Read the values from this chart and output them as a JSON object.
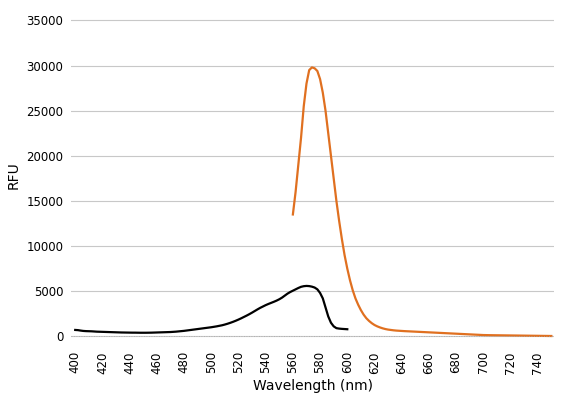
{
  "title": "",
  "xlabel": "Wavelength (nm)",
  "ylabel": "RFU",
  "xlim": [
    397,
    752
  ],
  "ylim": [
    -800,
    36500
  ],
  "yticks": [
    0,
    5000,
    10000,
    15000,
    20000,
    25000,
    30000,
    35000
  ],
  "xticks": [
    400,
    420,
    440,
    460,
    480,
    500,
    520,
    540,
    560,
    580,
    600,
    620,
    640,
    660,
    680,
    700,
    720,
    740
  ],
  "excitation_color": "#000000",
  "emission_color": "#E07020",
  "background_color": "#ffffff",
  "grid_color": "#c8c8c8",
  "line_width": 1.6,
  "excitation_x": [
    400,
    402,
    404,
    406,
    408,
    410,
    412,
    414,
    416,
    418,
    420,
    422,
    424,
    426,
    428,
    430,
    432,
    434,
    436,
    438,
    440,
    442,
    444,
    446,
    448,
    450,
    452,
    454,
    456,
    458,
    460,
    462,
    464,
    466,
    468,
    470,
    472,
    474,
    476,
    478,
    480,
    482,
    484,
    486,
    488,
    490,
    492,
    494,
    496,
    498,
    500,
    502,
    504,
    506,
    508,
    510,
    512,
    514,
    516,
    518,
    520,
    522,
    524,
    526,
    528,
    530,
    532,
    534,
    536,
    538,
    540,
    542,
    544,
    546,
    548,
    550,
    552,
    554,
    556,
    558,
    560,
    562,
    564,
    566,
    568,
    570,
    572,
    574,
    576,
    578,
    580,
    582,
    584,
    586,
    588,
    590,
    592,
    594,
    596,
    598,
    600
  ],
  "excitation_y": [
    700,
    680,
    630,
    590,
    570,
    560,
    550,
    530,
    510,
    500,
    490,
    480,
    470,
    460,
    450,
    440,
    430,
    420,
    415,
    410,
    405,
    400,
    400,
    395,
    390,
    390,
    390,
    395,
    400,
    410,
    420,
    430,
    440,
    450,
    460,
    470,
    490,
    510,
    540,
    570,
    600,
    640,
    680,
    720,
    760,
    800,
    840,
    880,
    920,
    960,
    1000,
    1050,
    1100,
    1160,
    1220,
    1300,
    1390,
    1490,
    1600,
    1720,
    1850,
    1990,
    2140,
    2290,
    2450,
    2620,
    2800,
    2980,
    3150,
    3300,
    3450,
    3580,
    3700,
    3820,
    3950,
    4100,
    4280,
    4500,
    4720,
    4900,
    5050,
    5200,
    5350,
    5480,
    5550,
    5580,
    5560,
    5500,
    5400,
    5200,
    4800,
    4200,
    3200,
    2200,
    1500,
    1100,
    900,
    850,
    820,
    800,
    780
  ],
  "emission_x": [
    560,
    562,
    564,
    566,
    568,
    570,
    572,
    574,
    576,
    578,
    580,
    582,
    584,
    586,
    588,
    590,
    592,
    594,
    596,
    598,
    600,
    602,
    604,
    606,
    608,
    610,
    612,
    614,
    616,
    618,
    620,
    622,
    624,
    626,
    628,
    630,
    632,
    634,
    636,
    638,
    640,
    642,
    644,
    646,
    648,
    650,
    652,
    654,
    656,
    658,
    660,
    662,
    664,
    666,
    668,
    670,
    672,
    674,
    676,
    678,
    680,
    682,
    684,
    686,
    688,
    690,
    692,
    694,
    696,
    698,
    700,
    705,
    710,
    715,
    720,
    725,
    730,
    735,
    740,
    745,
    750
  ],
  "emission_y": [
    13500,
    16000,
    19000,
    22000,
    25500,
    28000,
    29500,
    29800,
    29700,
    29400,
    28500,
    27000,
    25000,
    22500,
    20000,
    17500,
    15000,
    12800,
    10800,
    9000,
    7500,
    6200,
    5100,
    4200,
    3500,
    2900,
    2400,
    2000,
    1700,
    1450,
    1250,
    1100,
    980,
    880,
    800,
    740,
    700,
    660,
    630,
    610,
    590,
    570,
    555,
    540,
    525,
    510,
    495,
    480,
    465,
    450,
    435,
    420,
    405,
    390,
    375,
    360,
    345,
    330,
    315,
    300,
    285,
    270,
    255,
    240,
    225,
    210,
    195,
    180,
    165,
    150,
    135,
    120,
    110,
    100,
    90,
    80,
    70,
    60,
    50,
    40,
    30
  ]
}
